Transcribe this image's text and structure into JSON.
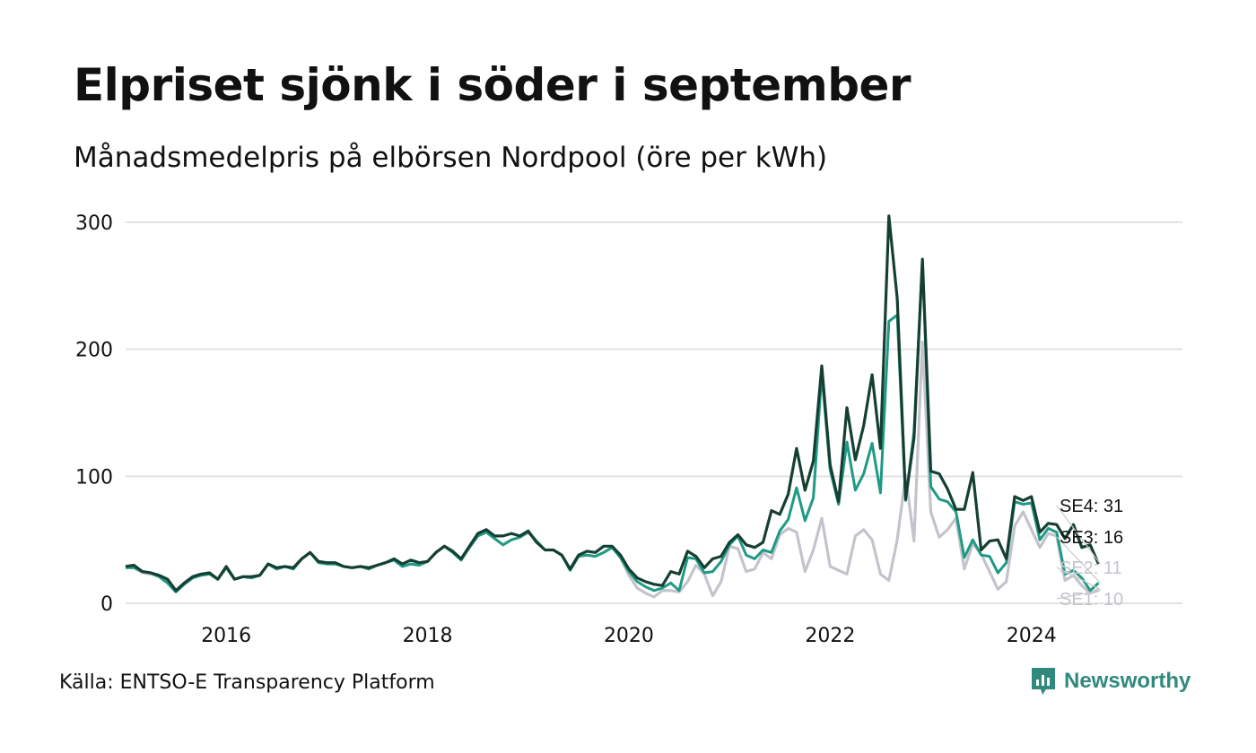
{
  "title": "Elpriset sjönk i söder i september",
  "subtitle": "Månadsmedelpris på elbörsen Nordpool (öre per kWh)",
  "source": "Källa: ENTSO-E Transparency Platform",
  "brand": "Newsworthy",
  "colors": {
    "SE1": "#c4c3cc",
    "SE2": "#c4c3cc",
    "SE3": "#1e9a85",
    "SE4": "#163f33",
    "grid": "#e2e2e2",
    "brand": "#2f8a7d"
  },
  "chart_data": {
    "type": "line",
    "ylim": [
      0,
      300
    ],
    "yticks": [
      0,
      100,
      200,
      300
    ],
    "xlim": [
      2015.0,
      2025.5
    ],
    "xticks": [
      2016,
      2018,
      2020,
      2022,
      2024
    ],
    "x_start": "2015-01",
    "grid": "horizontal",
    "series": [
      {
        "name": "SE4",
        "end_label": "SE4: 31",
        "values": [
          29,
          30,
          25,
          24,
          22,
          19,
          10,
          16,
          21,
          23,
          24,
          19,
          29,
          19,
          21,
          21,
          22,
          31,
          28,
          29,
          28,
          35,
          40,
          33,
          32,
          32,
          29,
          28,
          29,
          28,
          30,
          32,
          35,
          31,
          34,
          32,
          33,
          40,
          45,
          41,
          35,
          45,
          55,
          58,
          53,
          53,
          55,
          53,
          57,
          48,
          42,
          42,
          38,
          27,
          38,
          41,
          40,
          45,
          45,
          38,
          27,
          20,
          17,
          15,
          14,
          25,
          23,
          41,
          37,
          28,
          35,
          37,
          48,
          54,
          46,
          44,
          48,
          73,
          70,
          86,
          122,
          89,
          112,
          187,
          109,
          80,
          154,
          113,
          140,
          180,
          122,
          305,
          240,
          82,
          130,
          271,
          104,
          102,
          90,
          74,
          74,
          103,
          42,
          49,
          50,
          35,
          84,
          81,
          84,
          56,
          63,
          62,
          51,
          62,
          44,
          46,
          31
        ]
      },
      {
        "name": "SE3",
        "end_label": "SE3: 16",
        "values": [
          28,
          28,
          25,
          24,
          21,
          16,
          9,
          15,
          20,
          22,
          23,
          19,
          28,
          19,
          21,
          20,
          22,
          31,
          27,
          29,
          27,
          35,
          40,
          32,
          31,
          31,
          29,
          28,
          29,
          27,
          30,
          32,
          34,
          29,
          31,
          30,
          33,
          40,
          45,
          40,
          34,
          44,
          53,
          56,
          51,
          46,
          50,
          52,
          56,
          49,
          42,
          42,
          38,
          26,
          37,
          38,
          37,
          40,
          44,
          36,
          25,
          17,
          13,
          10,
          12,
          16,
          10,
          36,
          35,
          24,
          25,
          33,
          46,
          53,
          38,
          35,
          42,
          40,
          57,
          66,
          91,
          65,
          83,
          181,
          105,
          78,
          127,
          89,
          102,
          126,
          87,
          222,
          227,
          81,
          135,
          270,
          92,
          82,
          80,
          72,
          36,
          50,
          38,
          37,
          24,
          32,
          80,
          78,
          79,
          50,
          59,
          56,
          23,
          26,
          20,
          10,
          16
        ]
      },
      {
        "name": "SE2",
        "end_label": "SE2: 11",
        "values": [
          28,
          28,
          24,
          23,
          21,
          16,
          9,
          15,
          20,
          22,
          23,
          19,
          28,
          19,
          21,
          20,
          22,
          31,
          27,
          29,
          27,
          35,
          40,
          32,
          31,
          31,
          29,
          28,
          29,
          27,
          30,
          32,
          34,
          29,
          31,
          30,
          33,
          40,
          45,
          40,
          34,
          44,
          53,
          56,
          51,
          46,
          50,
          52,
          56,
          49,
          42,
          42,
          38,
          26,
          37,
          38,
          37,
          40,
          44,
          36,
          22,
          12,
          8,
          5,
          10,
          10,
          9,
          17,
          30,
          23,
          6,
          17,
          45,
          43,
          25,
          27,
          40,
          35,
          54,
          59,
          56,
          25,
          42,
          67,
          29,
          26,
          23,
          53,
          58,
          50,
          23,
          18,
          50,
          101,
          49,
          206,
          72,
          52,
          58,
          67,
          27,
          47,
          39,
          25,
          11,
          17,
          61,
          72,
          58,
          44,
          55,
          53,
          18,
          22,
          14,
          8,
          11
        ]
      },
      {
        "name": "SE1",
        "end_label": "SE1: 10",
        "values": [
          28,
          28,
          24,
          23,
          21,
          16,
          9,
          15,
          20,
          22,
          23,
          19,
          28,
          19,
          21,
          20,
          22,
          31,
          27,
          29,
          27,
          35,
          40,
          32,
          31,
          31,
          29,
          28,
          29,
          27,
          30,
          32,
          34,
          29,
          31,
          30,
          33,
          40,
          45,
          40,
          34,
          44,
          53,
          56,
          51,
          46,
          50,
          52,
          56,
          49,
          42,
          42,
          38,
          26,
          37,
          38,
          37,
          40,
          44,
          36,
          22,
          12,
          8,
          5,
          10,
          10,
          9,
          17,
          30,
          23,
          6,
          17,
          45,
          43,
          25,
          27,
          40,
          35,
          54,
          59,
          56,
          25,
          42,
          67,
          29,
          26,
          23,
          53,
          58,
          50,
          23,
          18,
          50,
          101,
          49,
          206,
          72,
          52,
          58,
          67,
          27,
          47,
          39,
          25,
          11,
          17,
          61,
          72,
          58,
          44,
          55,
          53,
          18,
          22,
          14,
          8,
          10
        ]
      }
    ]
  }
}
